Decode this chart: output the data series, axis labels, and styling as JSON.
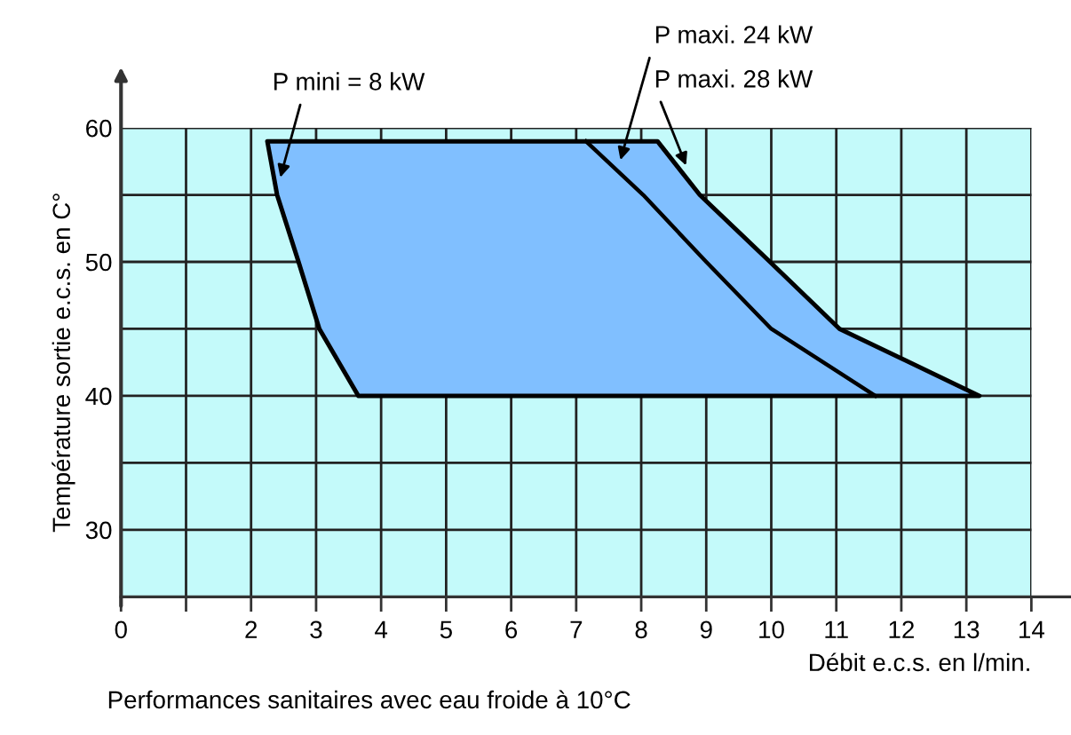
{
  "chart_data": {
    "type": "line",
    "xlabel": "Débit e.c.s. en l/min.",
    "ylabel": "Température sortie e.c.s. en C°",
    "xlim": [
      0,
      14
    ],
    "ylim": [
      25,
      60
    ],
    "xticks": [
      0,
      {
        "value": 1,
        "label": null
      },
      2,
      3,
      4,
      5,
      6,
      7,
      8,
      9,
      10,
      11,
      12,
      13,
      14
    ],
    "yticks": [
      {
        "value": 25,
        "label": null
      },
      30,
      {
        "value": 35,
        "label": null
      },
      40,
      {
        "value": 45,
        "label": null
      },
      50,
      {
        "value": 55,
        "label": null
      },
      60
    ],
    "grid": true,
    "marker": "none",
    "line_style": "solid",
    "series": [
      {
        "type": "area",
        "color": "#80bfff",
        "x": [
          2.25,
          8.25,
          8.9,
          9.98,
          11.05,
          13.2,
          3.65,
          3.05,
          2.73,
          2.4,
          2.25
        ],
        "values": [
          59,
          59,
          55,
          50,
          45,
          40,
          40,
          45,
          50,
          55,
          59
        ]
      },
      {
        "color": "#000000",
        "x": [
          7.15,
          8.03,
          9.0,
          10.0,
          11.6
        ],
        "values": [
          59,
          55,
          50,
          45,
          40
        ]
      }
    ],
    "annotations": [
      {
        "text": "P mini = 8 kW",
        "x": 2.45,
        "y": 56.3
      },
      {
        "text": "P maxi. 24 kW",
        "x": 7.68,
        "y": 57.6
      },
      {
        "text": "P maxi. 28 kW",
        "x": 8.69,
        "y": 57.2
      },
      "Performances sanitaires avec eau froide à 10°C"
    ]
  }
}
